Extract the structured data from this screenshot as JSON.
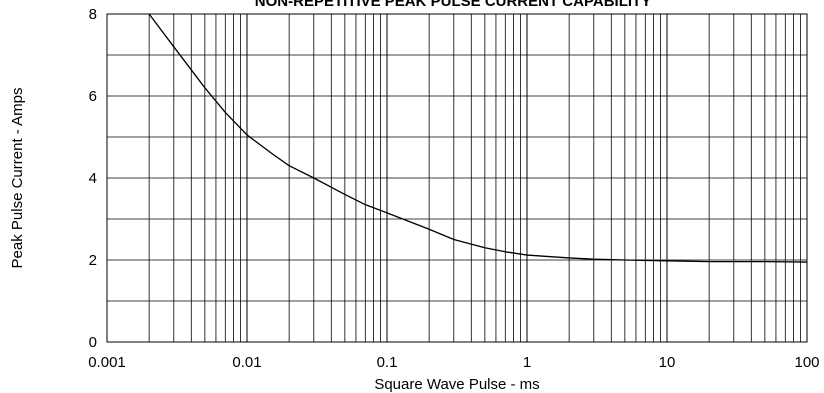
{
  "chart_data": {
    "type": "line",
    "title": "NON-REPETITIVE PEAK PULSE CURRENT CAPABILITY",
    "xlabel": "Square Wave Pulse - ms",
    "ylabel": "Peak Pulse Current - Amps",
    "xscale": "log",
    "xlim": [
      0.001,
      100
    ],
    "ylim": [
      0,
      8
    ],
    "x_tick_labels": [
      "0.001",
      "0.01",
      "0.1",
      "1",
      "10",
      "100"
    ],
    "y_tick_labels": [
      "0",
      "2",
      "4",
      "6",
      "8"
    ],
    "grid": true,
    "series": [
      {
        "x": [
          0.002,
          0.003,
          0.005,
          0.007,
          0.01,
          0.015,
          0.02,
          0.03,
          0.05,
          0.07,
          0.1,
          0.2,
          0.3,
          0.5,
          0.7,
          1,
          2,
          3,
          5,
          10,
          20,
          50,
          100
        ],
        "y": [
          8.0,
          7.2,
          6.2,
          5.6,
          5.05,
          4.6,
          4.3,
          4.0,
          3.6,
          3.35,
          3.15,
          2.75,
          2.5,
          2.3,
          2.2,
          2.12,
          2.05,
          2.02,
          2.0,
          1.98,
          1.96,
          1.96,
          1.95
        ]
      }
    ]
  }
}
